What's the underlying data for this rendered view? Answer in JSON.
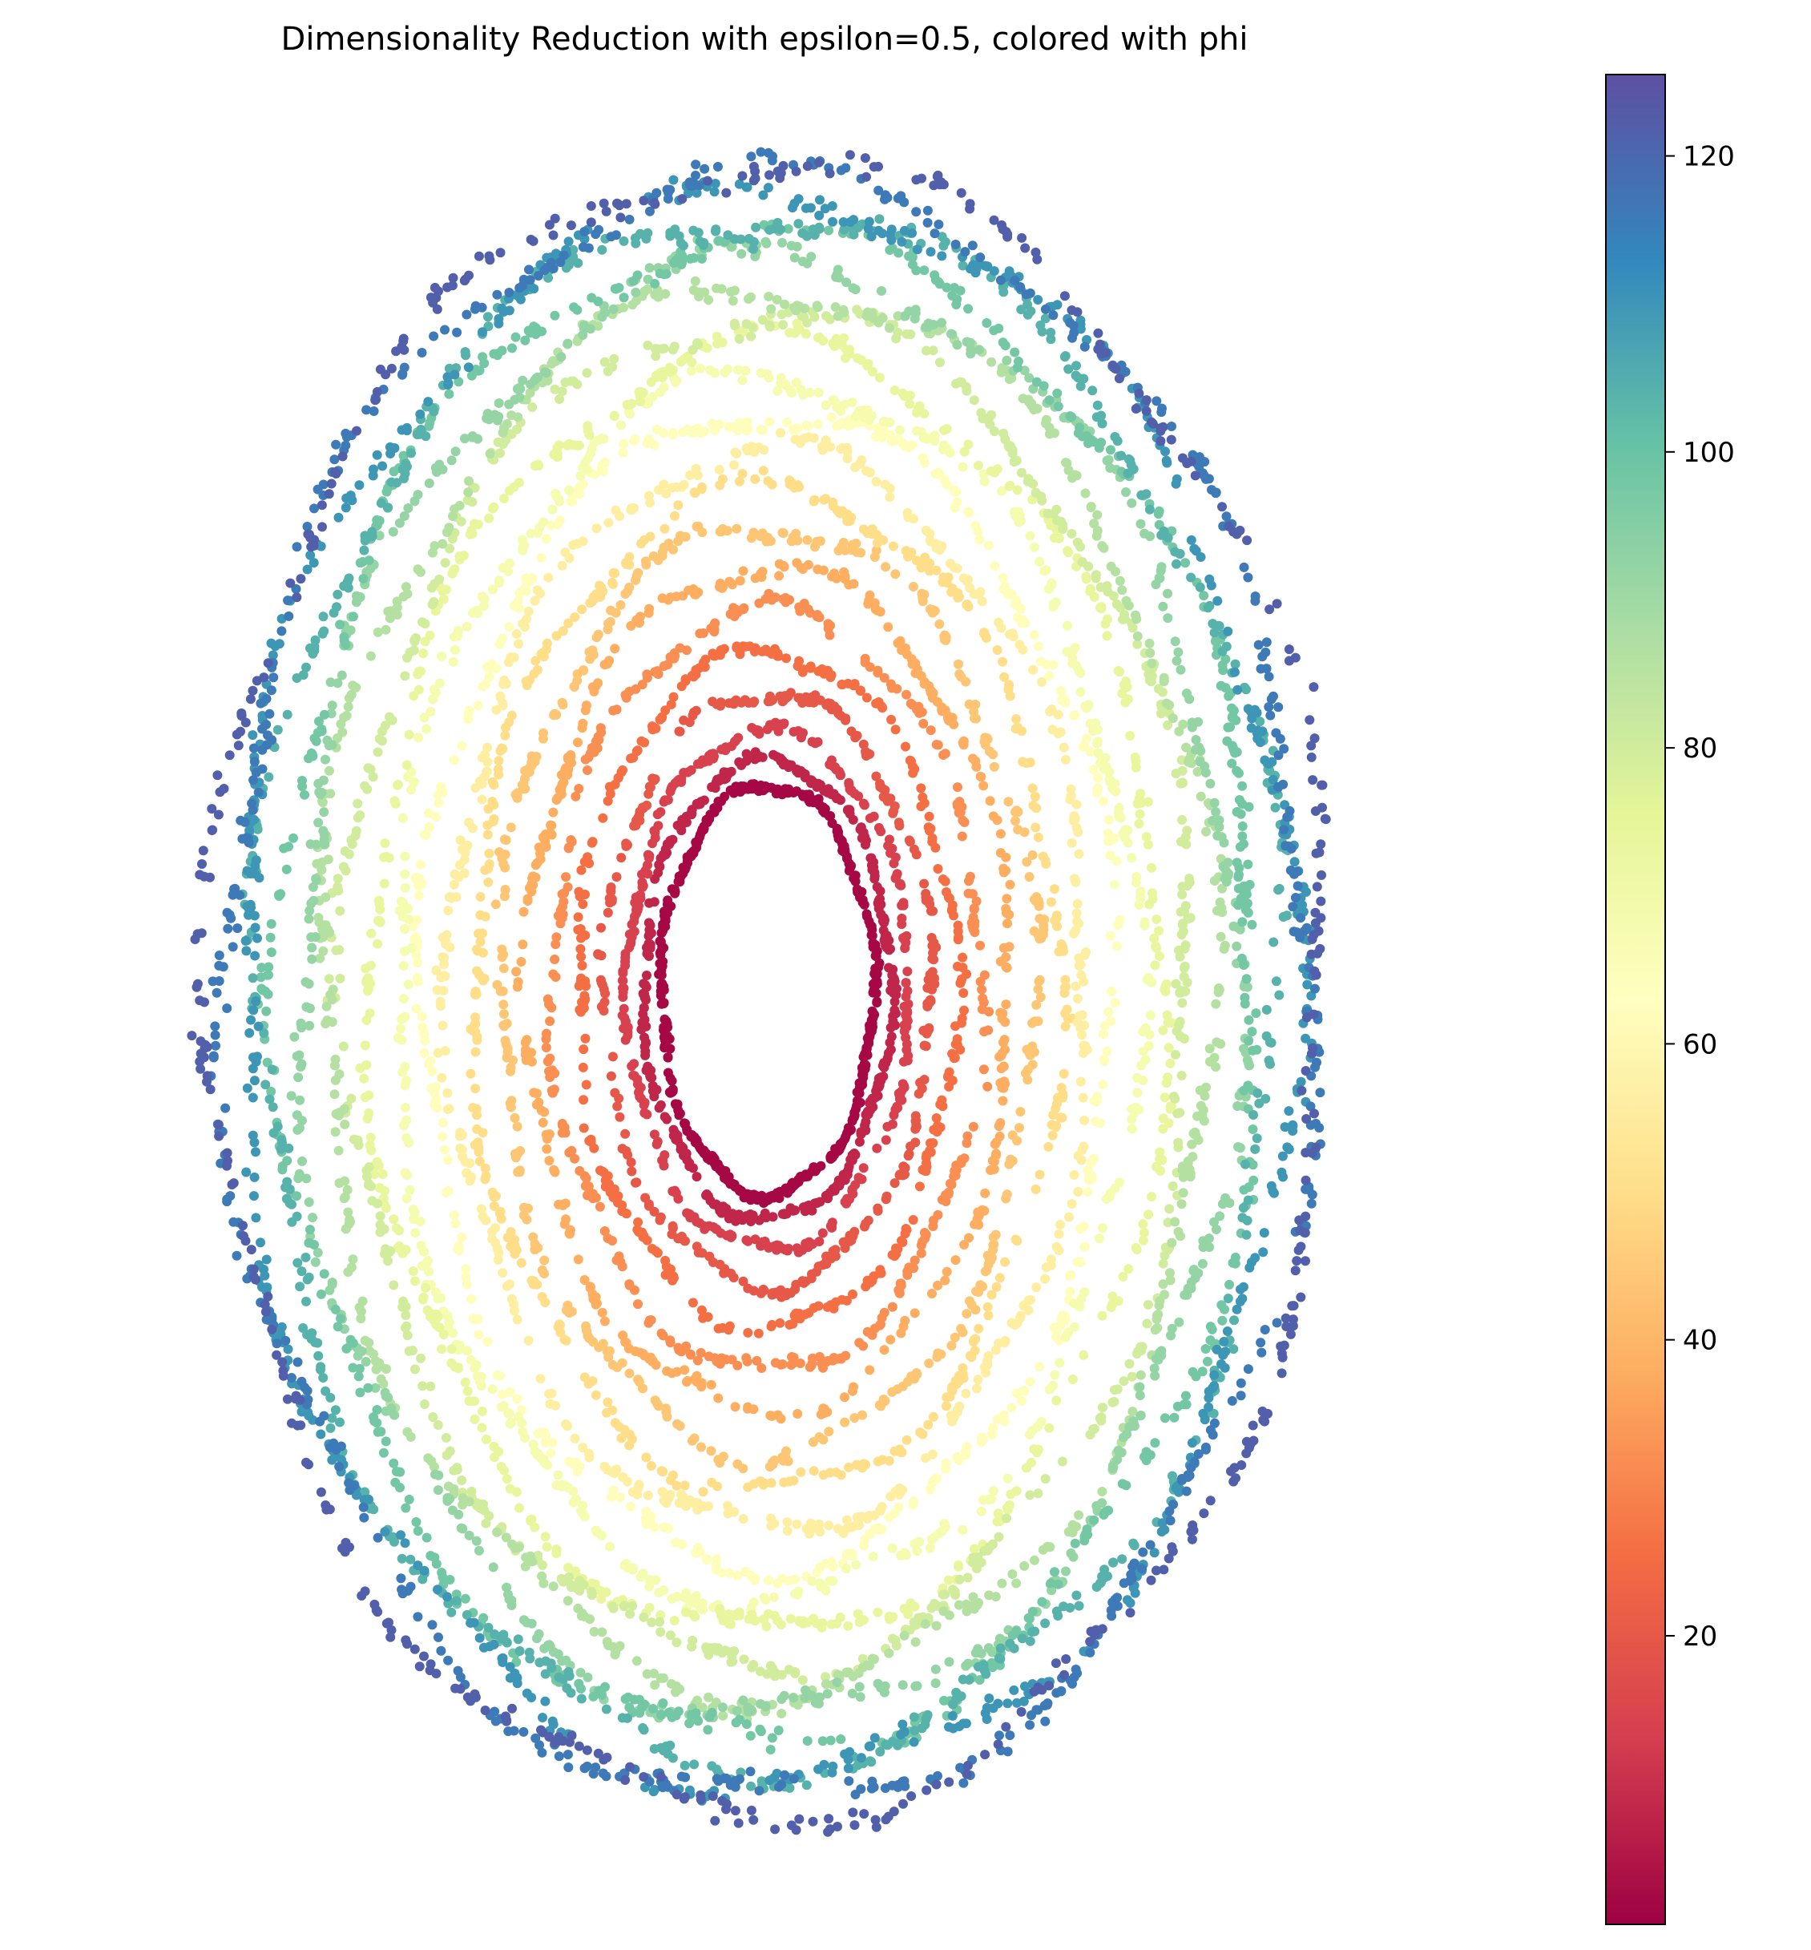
{
  "chart_data": {
    "type": "scatter",
    "title": "Dimensionality Reduction with epsilon=0.5, colored with phi",
    "xlabel": "",
    "ylabel": "",
    "axes_visible": false,
    "description_of_data": "Points arranged in concentric elliptical rings; color encodes phi, increasing from the inner ring outward.",
    "rings": [
      {
        "phi": 2,
        "rx": 0.185,
        "ry": 0.245,
        "count": 500
      },
      {
        "phi": 8,
        "rx": 0.215,
        "ry": 0.275,
        "count": 380
      },
      {
        "phi": 14,
        "rx": 0.245,
        "ry": 0.31,
        "count": 300
      },
      {
        "phi": 20,
        "rx": 0.285,
        "ry": 0.355,
        "count": 280
      },
      {
        "phi": 26,
        "rx": 0.33,
        "ry": 0.405,
        "count": 300
      },
      {
        "phi": 32,
        "rx": 0.375,
        "ry": 0.455,
        "count": 300
      },
      {
        "phi": 38,
        "rx": 0.42,
        "ry": 0.505,
        "count": 320
      },
      {
        "phi": 44,
        "rx": 0.465,
        "ry": 0.555,
        "count": 340
      },
      {
        "phi": 50,
        "rx": 0.51,
        "ry": 0.6,
        "count": 360
      },
      {
        "phi": 56,
        "rx": 0.555,
        "ry": 0.645,
        "count": 380
      },
      {
        "phi": 62,
        "rx": 0.6,
        "ry": 0.69,
        "count": 400
      },
      {
        "phi": 68,
        "rx": 0.645,
        "ry": 0.73,
        "count": 420
      },
      {
        "phi": 74,
        "rx": 0.69,
        "ry": 0.77,
        "count": 440
      },
      {
        "phi": 80,
        "rx": 0.735,
        "ry": 0.805,
        "count": 460
      },
      {
        "phi": 86,
        "rx": 0.775,
        "ry": 0.84,
        "count": 470
      },
      {
        "phi": 92,
        "rx": 0.815,
        "ry": 0.87,
        "count": 480
      },
      {
        "phi": 98,
        "rx": 0.85,
        "ry": 0.9,
        "count": 480
      },
      {
        "phi": 104,
        "rx": 0.885,
        "ry": 0.925,
        "count": 480
      },
      {
        "phi": 110,
        "rx": 0.915,
        "ry": 0.95,
        "count": 480
      },
      {
        "phi": 116,
        "rx": 0.945,
        "ry": 0.97,
        "count": 460
      },
      {
        "phi": 122,
        "rx": 0.97,
        "ry": 0.985,
        "count": 420
      }
    ],
    "colorbar": {
      "label": "",
      "min": 0.5,
      "max": 125.5,
      "ticks": [
        20,
        40,
        60,
        80,
        100,
        120
      ],
      "tick_labels": [
        "20",
        "40",
        "60",
        "80",
        "100",
        "120"
      ],
      "colormap": "Spectral",
      "colormap_stops": [
        "#9e0142",
        "#d53e4f",
        "#f46d43",
        "#fdae61",
        "#fee08b",
        "#ffffbf",
        "#e6f598",
        "#abdda4",
        "#66c2a5",
        "#3288bd",
        "#5e4fa2"
      ]
    }
  }
}
